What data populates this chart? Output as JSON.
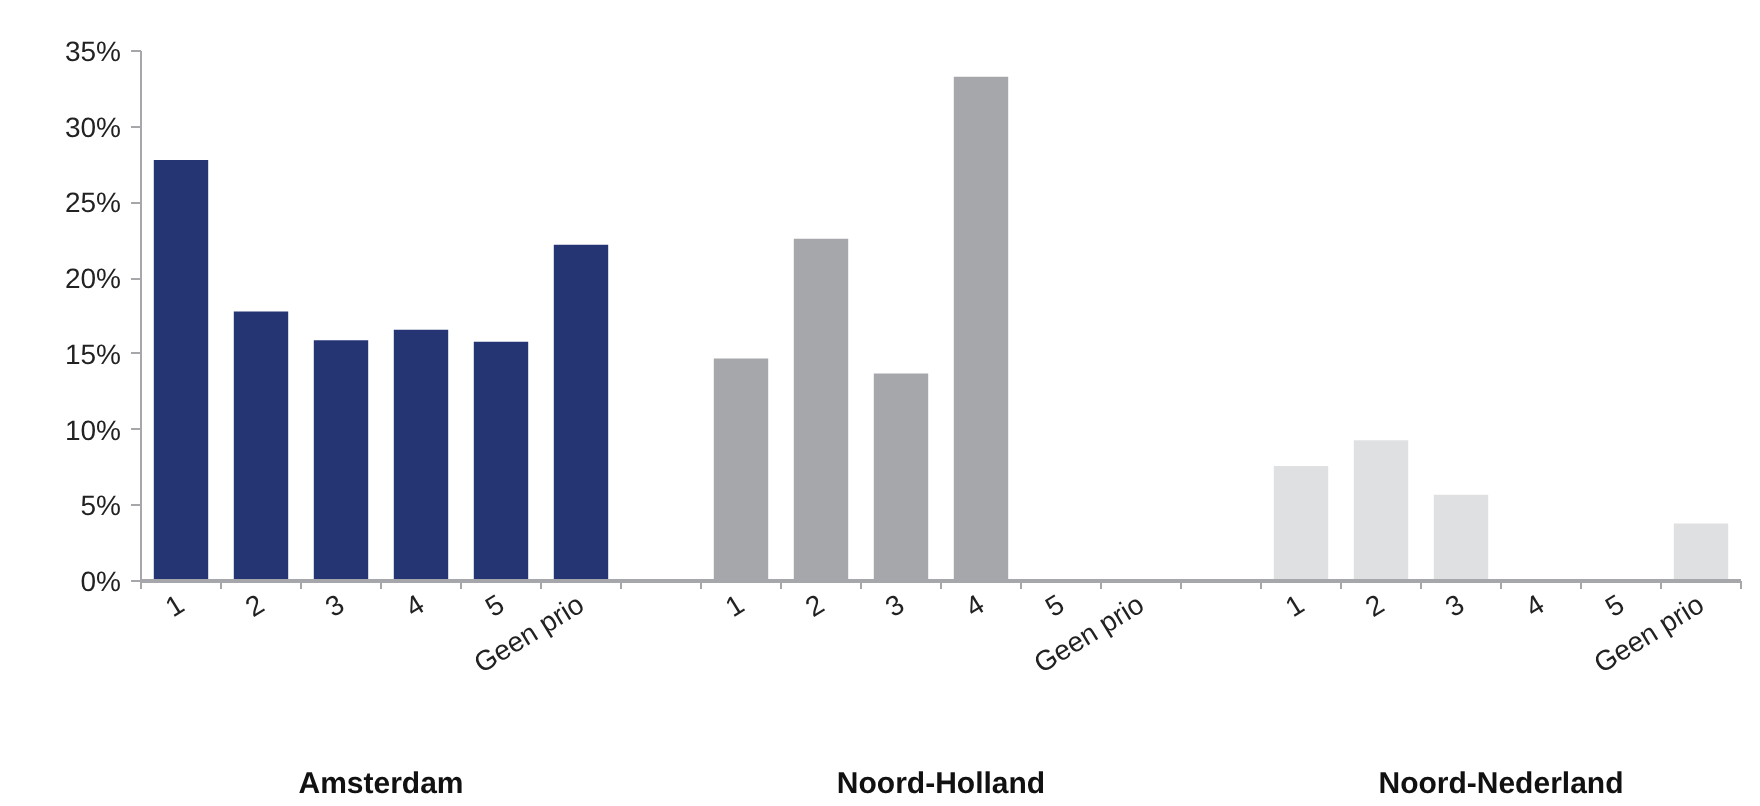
{
  "chart_data": {
    "type": "bar",
    "categories": [
      "1",
      "2",
      "3",
      "4",
      "5",
      "Geen prio",
      null,
      "1",
      "2",
      "3",
      "4",
      "5",
      "Geen prio",
      null,
      "1",
      "2",
      "3",
      "4",
      "5",
      "Geen prio"
    ],
    "values": [
      27.8,
      17.8,
      15.9,
      16.6,
      15.8,
      22.2,
      null,
      14.7,
      22.6,
      13.7,
      33.3,
      0,
      0,
      null,
      7.6,
      9.3,
      5.7,
      0,
      0,
      3.8
    ],
    "colors": [
      "#253574",
      "#253574",
      "#253574",
      "#253574",
      "#253574",
      "#253574",
      null,
      "#a6a7aa",
      "#a6a7aa",
      "#a6a7aa",
      "#a6a7aa",
      "#a6a7aa",
      "#a6a7aa",
      null,
      "#dfe0e1",
      "#dfe0e1",
      "#dfe0e1",
      "#dfe0e1",
      "#dfe0e1",
      "#dfe0e1"
    ],
    "annotations": [
      "Amsterdam",
      "Noord-Holland",
      "Noord-Nederland"
    ],
    "ylim": [
      0,
      35
    ],
    "yticks": [
      {
        "value": 0,
        "label": "0%"
      },
      {
        "value": 5,
        "label": "5%"
      },
      {
        "value": 10,
        "label": "10%"
      },
      {
        "value": 15,
        "label": "15%"
      },
      {
        "value": 20,
        "label": "20%"
      },
      {
        "value": 25,
        "label": "25%"
      },
      {
        "value": 30,
        "label": "30%"
      },
      {
        "value": 35,
        "label": "35%"
      }
    ],
    "grid": false
  }
}
